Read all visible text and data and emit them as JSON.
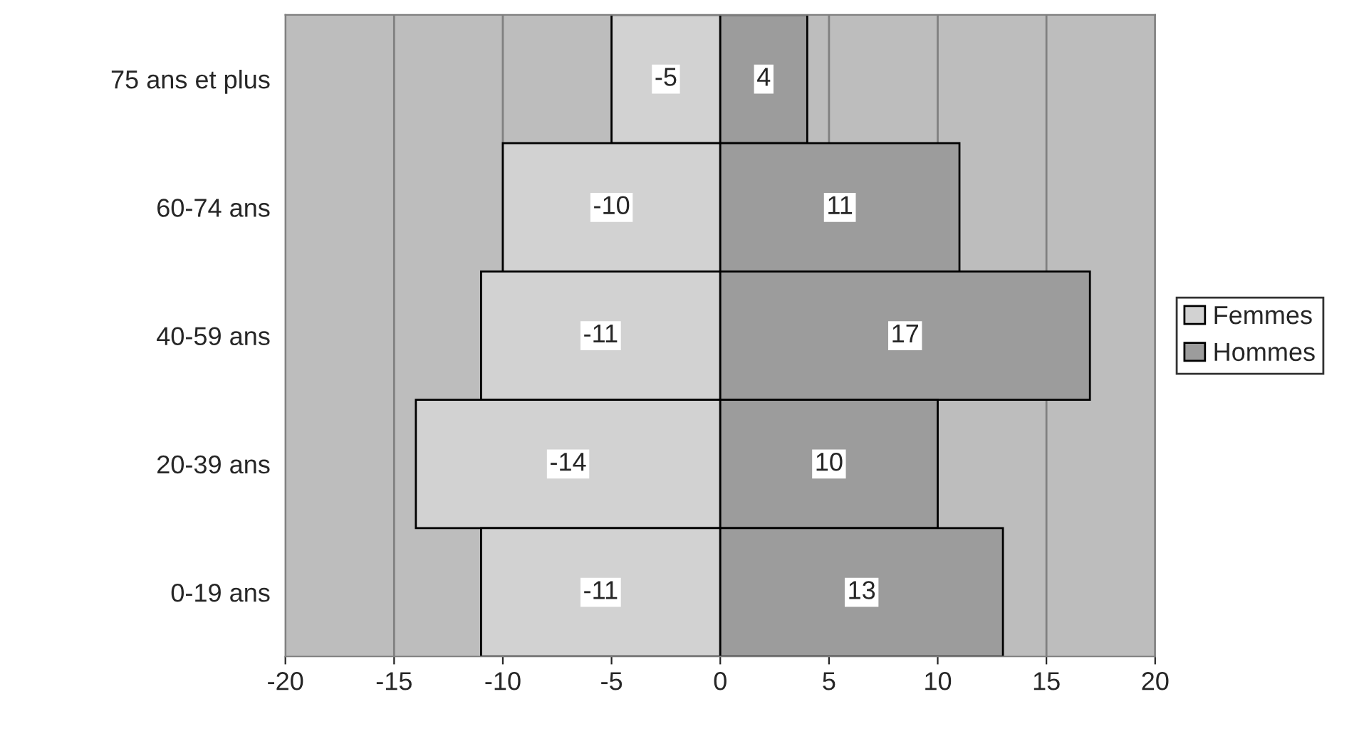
{
  "chart_data": {
    "type": "bar",
    "orientation": "horizontal",
    "categories": [
      "75 ans et plus",
      "60-74 ans",
      "40-59 ans",
      "20-39 ans",
      "0-19 ans"
    ],
    "series": [
      {
        "name": "Femmes",
        "color": "#d2d2d2",
        "values": [
          -5,
          -10,
          -11,
          -14,
          -11
        ]
      },
      {
        "name": "Hommes",
        "color": "#9c9c9c",
        "values": [
          4,
          11,
          17,
          10,
          13
        ]
      }
    ],
    "xlim": [
      -20,
      20
    ],
    "xticks": [
      -20,
      -15,
      -10,
      -5,
      0,
      5,
      10,
      15,
      20
    ],
    "grid": "x",
    "stacked": true,
    "legend": "right",
    "data_labels": true
  }
}
